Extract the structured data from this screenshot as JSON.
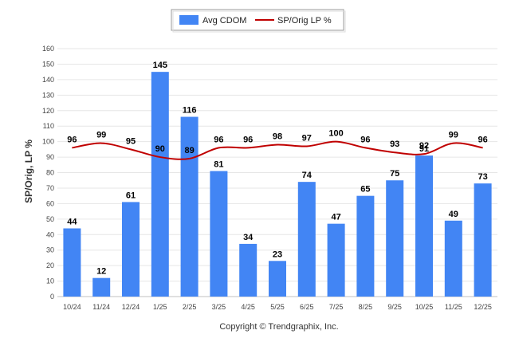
{
  "chart_data": {
    "type": "bar",
    "categories": [
      "10/24",
      "11/24",
      "12/24",
      "1/25",
      "2/25",
      "3/25",
      "4/25",
      "5/25",
      "6/25",
      "7/25",
      "8/25",
      "9/25",
      "10/25",
      "11/25",
      "12/25"
    ],
    "series": [
      {
        "name": "Avg CDOM",
        "type": "bar",
        "color": "#4285f4",
        "values": [
          44,
          12,
          61,
          145,
          116,
          81,
          34,
          23,
          74,
          47,
          65,
          75,
          91,
          49,
          73
        ]
      },
      {
        "name": "SP/Orig LP %",
        "type": "line",
        "color": "#c00000",
        "values": [
          96,
          99,
          95,
          90,
          89,
          96,
          96,
          98,
          97,
          100,
          96,
          93,
          92,
          99,
          96
        ]
      }
    ],
    "ylabel": "SP/Orig, LP %",
    "ylim": [
      0,
      160
    ],
    "yticks": [
      0,
      10,
      20,
      30,
      40,
      50,
      60,
      70,
      80,
      90,
      100,
      110,
      120,
      130,
      140,
      150,
      160
    ],
    "legend_position": "top-center",
    "grid": true
  },
  "footer": {
    "copyright": "Copyright © Trendgraphix, Inc."
  }
}
